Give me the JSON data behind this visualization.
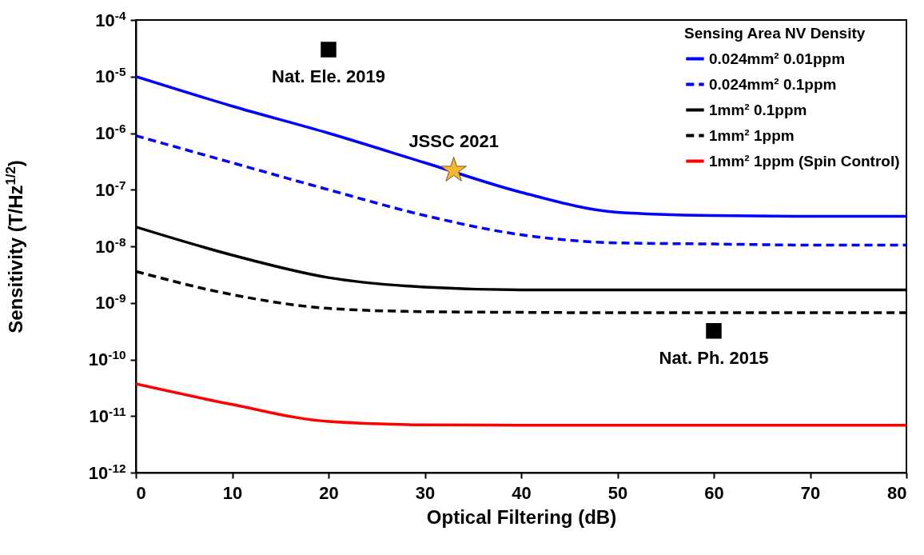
{
  "chart_data": {
    "type": "line",
    "xlabel": "Optical Filtering (dB)",
    "ylabel": "Sensitivity (T/Hz$^{1/2}$)",
    "legend_title": "Sensing Area   NV Density",
    "legend": "top right",
    "log": true,
    "grid": false,
    "x": [
      0,
      10,
      20,
      30,
      40,
      50,
      60,
      70,
      80
    ],
    "xlim": [
      0,
      80
    ],
    "xticks": [
      0,
      10,
      20,
      30,
      40,
      50,
      60,
      70,
      80
    ],
    "ylim": [
      1e-12,
      0.0001
    ],
    "yticks": [
      {
        "value": 1e-12,
        "label": "10$^{-12}$"
      },
      {
        "value": 1e-11,
        "label": "10$^{-11}$"
      },
      {
        "value": 1e-10,
        "label": "10$^{-10}$"
      },
      {
        "value": 1e-09,
        "label": "10$^{-9}$"
      },
      {
        "value": 1e-08,
        "label": "10$^{-8}$"
      },
      {
        "value": 1e-07,
        "label": "10$^{-7}$"
      },
      {
        "value": 1e-06,
        "label": "10$^{-6}$"
      },
      {
        "value": 1e-05,
        "label": "10$^{-5}$"
      },
      {
        "value": 0.0001,
        "label": "10$^{-4}$"
      }
    ],
    "series": [
      {
        "name": "0.024mm² 0.01ppm",
        "color": "#0000ff",
        "line_style": "solid",
        "values": [
          1e-05,
          3e-06,
          1e-06,
          3e-07,
          9e-08,
          4e-08,
          3.5e-08,
          3.4e-08,
          3.4e-08
        ]
      },
      {
        "name": "0.024mm² 0.1ppm",
        "color": "#0000ff",
        "line_style": "dashed",
        "values": [
          9e-07,
          3e-07,
          1e-07,
          3.5e-08,
          1.6e-08,
          1.15e-08,
          1.1e-08,
          1.05e-08,
          1.05e-08
        ]
      },
      {
        "name": "1mm² 0.1ppm",
        "color": "#000000",
        "line_style": "solid",
        "values": [
          2.2e-08,
          7e-09,
          2.8e-09,
          1.9e-09,
          1.7e-09,
          1.7e-09,
          1.7e-09,
          1.7e-09,
          1.7e-09
        ]
      },
      {
        "name": "1mm² 1ppm",
        "color": "#000000",
        "line_style": "dashed",
        "values": [
          3.6e-09,
          1.4e-09,
          8e-10,
          7e-10,
          6.8e-10,
          6.7e-10,
          6.7e-10,
          6.7e-10,
          6.7e-10
        ]
      },
      {
        "name": "1mm² 1ppm (Spin Control)",
        "color": "#ff0000",
        "line_style": "solid",
        "values": [
          3.7e-11,
          1.6e-11,
          8e-12,
          7e-12,
          6.9e-12,
          6.9e-12,
          6.9e-12,
          6.9e-12,
          6.9e-12
        ]
      },
      {
        "type": "scatter",
        "marker": "square",
        "name": "Nat. Ele. 2019",
        "color": "#000000",
        "x": [
          20
        ],
        "values": [
          3e-05
        ]
      },
      {
        "type": "scatter",
        "marker": "square",
        "name": "Nat. Ph. 2015",
        "color": "#000000",
        "x": [
          60
        ],
        "values": [
          3.2e-10
        ]
      },
      {
        "type": "scatter",
        "marker": "star",
        "name": "JSSC 2021",
        "color": "#f5b731",
        "x": [
          33
        ],
        "values": [
          2.2e-07
        ]
      }
    ]
  }
}
